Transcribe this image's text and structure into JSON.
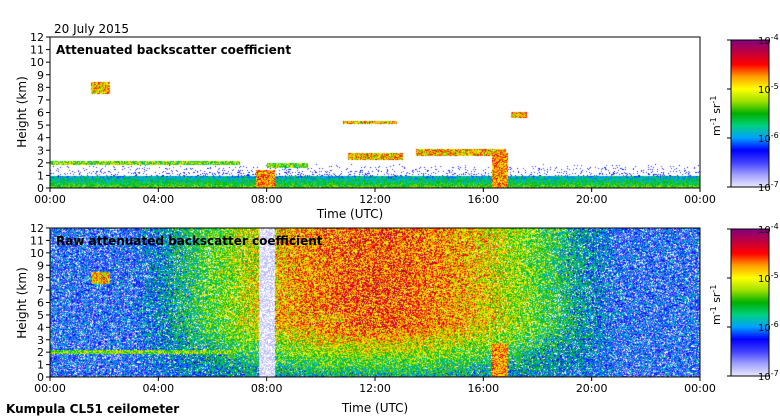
{
  "date_label": "20 July 2015",
  "footer": "Kumpula CL51 ceilometer",
  "colors": {
    "background": "#ffffff",
    "colormap": [
      "#e8e8ff",
      "#a0a0ff",
      "#4040ff",
      "#0000ff",
      "#00a0ff",
      "#00d080",
      "#00b000",
      "#a0e000",
      "#ffff00",
      "#ffa000",
      "#ff0000",
      "#c00040",
      "#800080"
    ]
  },
  "chart_data": [
    {
      "type": "heatmap",
      "title": "Attenuated backscatter coefficient",
      "xlabel": "Time (UTC)",
      "ylabel": "Height (km)",
      "xticks": [
        "00:00",
        "04:00",
        "08:00",
        "12:00",
        "16:00",
        "20:00",
        "00:00"
      ],
      "xlim_hours": [
        0,
        24
      ],
      "yticks": [
        0,
        1,
        2,
        3,
        4,
        5,
        6,
        7,
        8,
        9,
        10,
        11,
        12
      ],
      "ylim": [
        0,
        12
      ],
      "colorbar": {
        "ticks": [
          "10-4",
          "10-5",
          "10-6",
          "10-7"
        ],
        "label": "m-1 sr-1",
        "scale": "log",
        "range": [
          1e-07,
          0.0001
        ]
      },
      "features": [
        {
          "kind": "boundary_layer",
          "t0": 0,
          "t1": 24,
          "h_top": 1.0
        },
        {
          "kind": "layer",
          "t0": 0,
          "t1": 7,
          "h0": 1.9,
          "h1": 2.2
        },
        {
          "kind": "cloud",
          "t0": 1.5,
          "t1": 2.2,
          "h0": 7.5,
          "h1": 8.5
        },
        {
          "kind": "layer",
          "t0": 8.0,
          "t1": 9.5,
          "h0": 1.6,
          "h1": 2.0
        },
        {
          "kind": "cloud",
          "t0": 10.8,
          "t1": 12.8,
          "h0": 5.1,
          "h1": 5.4
        },
        {
          "kind": "cloud",
          "t0": 11,
          "t1": 13,
          "h0": 2.3,
          "h1": 2.8
        },
        {
          "kind": "cloud",
          "t0": 13.5,
          "t1": 16.8,
          "h0": 2.6,
          "h1": 3.1
        },
        {
          "kind": "cloud",
          "t0": 17.0,
          "t1": 17.6,
          "h0": 5.6,
          "h1": 6.1
        },
        {
          "kind": "precip",
          "t0": 7.6,
          "t1": 8.3,
          "h0": 0,
          "h1": 1.5
        },
        {
          "kind": "precip",
          "t0": 16.3,
          "t1": 16.9,
          "h0": 0,
          "h1": 2.8
        }
      ]
    },
    {
      "type": "heatmap",
      "title": "Raw attenuated backscatter coefficient",
      "xlabel": "Time (UTC)",
      "ylabel": "Height (km)",
      "xticks": [
        "00:00",
        "04:00",
        "08:00",
        "12:00",
        "16:00",
        "20:00",
        "00:00"
      ],
      "xlim_hours": [
        0,
        24
      ],
      "yticks": [
        0,
        1,
        2,
        3,
        4,
        5,
        6,
        7,
        8,
        9,
        10,
        11,
        12
      ],
      "ylim": [
        0,
        12
      ],
      "colorbar": {
        "ticks": [
          "10-4",
          "10-5",
          "10-6",
          "10-7"
        ],
        "label": "m-1 sr-1",
        "scale": "log",
        "range": [
          1e-07,
          0.0001
        ]
      },
      "features": [
        {
          "kind": "noise_field",
          "t0": 0,
          "t1": 24,
          "h0": 0,
          "h1": 12
        },
        {
          "kind": "solar_noise_peak",
          "t_center": 12,
          "width": 6
        },
        {
          "kind": "gap",
          "t0": 7.7,
          "t1": 8.3
        },
        {
          "kind": "layer",
          "t0": 0,
          "t1": 7,
          "h0": 1.9,
          "h1": 2.2
        },
        {
          "kind": "cloud",
          "t0": 1.5,
          "t1": 2.2,
          "h0": 7.5,
          "h1": 8.5
        },
        {
          "kind": "cloud",
          "t0": 9.5,
          "t1": 10.8,
          "h0": 4.5,
          "h1": 5.0
        },
        {
          "kind": "precip",
          "t0": 16.3,
          "t1": 16.9,
          "h0": 0,
          "h1": 2.8
        }
      ]
    }
  ]
}
